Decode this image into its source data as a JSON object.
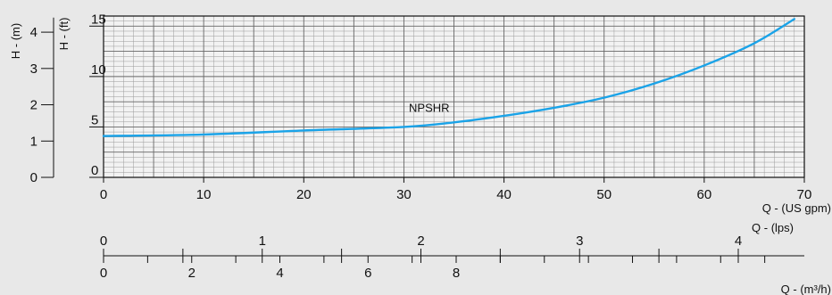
{
  "chart_data": {
    "type": "line",
    "series": [
      {
        "name": "NPSHR",
        "x": [
          0,
          10,
          20,
          30,
          35,
          40,
          45,
          50,
          55,
          60,
          65,
          69
        ],
        "y": [
          4.1,
          4.25,
          4.65,
          5.0,
          5.45,
          6.1,
          6.9,
          7.9,
          9.3,
          11.1,
          13.3,
          15.7
        ],
        "color": "#1aa3e8"
      }
    ],
    "xlabel": "Q - (US gpm)",
    "xlim": [
      0,
      70
    ],
    "x_ticks": [
      "0",
      "10",
      "20",
      "30",
      "40",
      "50",
      "60",
      "70"
    ],
    "ylabel_left": "H - (m)",
    "ylabel_ft": "H - (ft)",
    "ylim_ft": [
      0,
      16
    ],
    "y_ticks_ft": [
      "0",
      "5",
      "10",
      "15"
    ],
    "y_ticks_m": [
      "0",
      "1",
      "2",
      "3",
      "4"
    ],
    "lps_label": "Q - (lps)",
    "lps_ticks": [
      "0",
      "1",
      "2",
      "3",
      "4"
    ],
    "m3h_label": "Q - (m³/h)",
    "m3h_ticks": [
      "0",
      "2",
      "4",
      "6",
      "8"
    ],
    "grid": true
  }
}
